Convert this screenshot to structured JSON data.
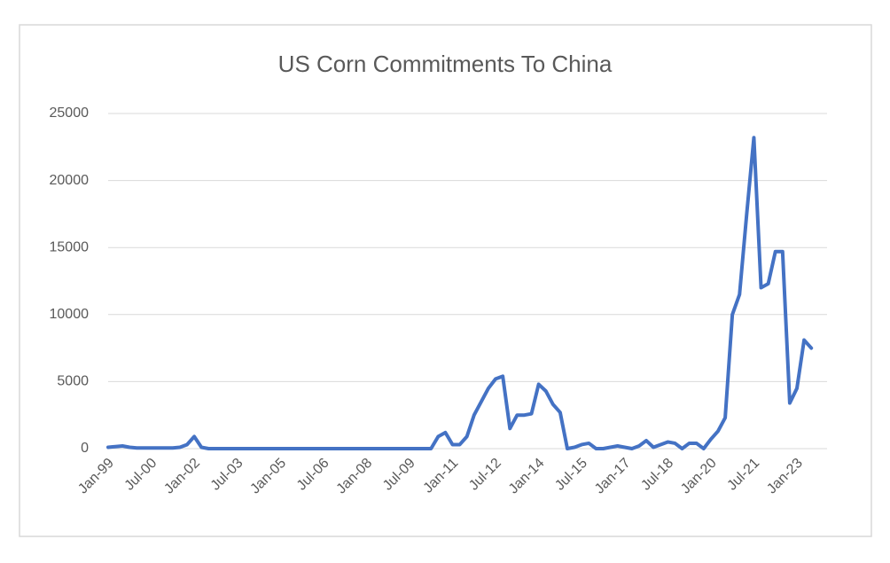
{
  "chart_data": {
    "type": "line",
    "title": "US Corn Commitments To China",
    "categories": [
      "Jan-99",
      null,
      null,
      null,
      null,
      null,
      "Jul-00",
      null,
      null,
      null,
      null,
      null,
      "Jan-02",
      null,
      null,
      null,
      null,
      null,
      "Jul-03",
      null,
      null,
      null,
      null,
      null,
      "Jan-05",
      null,
      null,
      null,
      null,
      null,
      "Jul-06",
      null,
      null,
      null,
      null,
      null,
      "Jan-08",
      null,
      null,
      null,
      null,
      null,
      "Jul-09",
      null,
      null,
      null,
      null,
      null,
      "Jan-11",
      null,
      null,
      null,
      null,
      null,
      "Jul-12",
      null,
      null,
      null,
      null,
      null,
      "Jan-14",
      null,
      null,
      null,
      null,
      null,
      "Jul-15",
      null,
      null,
      null,
      null,
      null,
      "Jan-17",
      null,
      null,
      null,
      null,
      null,
      "Jul-18",
      null,
      null,
      null,
      null,
      null,
      "Jan-20",
      null,
      null,
      null,
      null,
      null,
      "Jul-21",
      null,
      null,
      null,
      null,
      null,
      "Jan-23",
      null,
      null
    ],
    "values": [
      100,
      150,
      200,
      100,
      50,
      50,
      50,
      50,
      50,
      50,
      100,
      300,
      900,
      100,
      0,
      0,
      0,
      0,
      0,
      0,
      0,
      0,
      0,
      0,
      0,
      0,
      0,
      0,
      0,
      0,
      0,
      0,
      0,
      0,
      0,
      0,
      0,
      0,
      0,
      0,
      0,
      0,
      0,
      0,
      0,
      0,
      900,
      1200,
      300,
      300,
      900,
      2500,
      3500,
      4500,
      5200,
      5400,
      1500,
      2500,
      2500,
      2600,
      4800,
      4300,
      3300,
      2700,
      0,
      100,
      300,
      400,
      0,
      0,
      100,
      200,
      100,
      0,
      200,
      600,
      100,
      300,
      500,
      400,
      0,
      400,
      400,
      0,
      700,
      1300,
      2300,
      10000,
      11500,
      17500,
      23200,
      12000,
      12300,
      14700,
      14700,
      3400,
      4500,
      8100,
      7500
    ],
    "color": "#4472c4",
    "ylim": [
      0,
      25000
    ],
    "yticks": [
      0,
      5000,
      10000,
      15000,
      20000,
      25000
    ],
    "grid": true
  }
}
